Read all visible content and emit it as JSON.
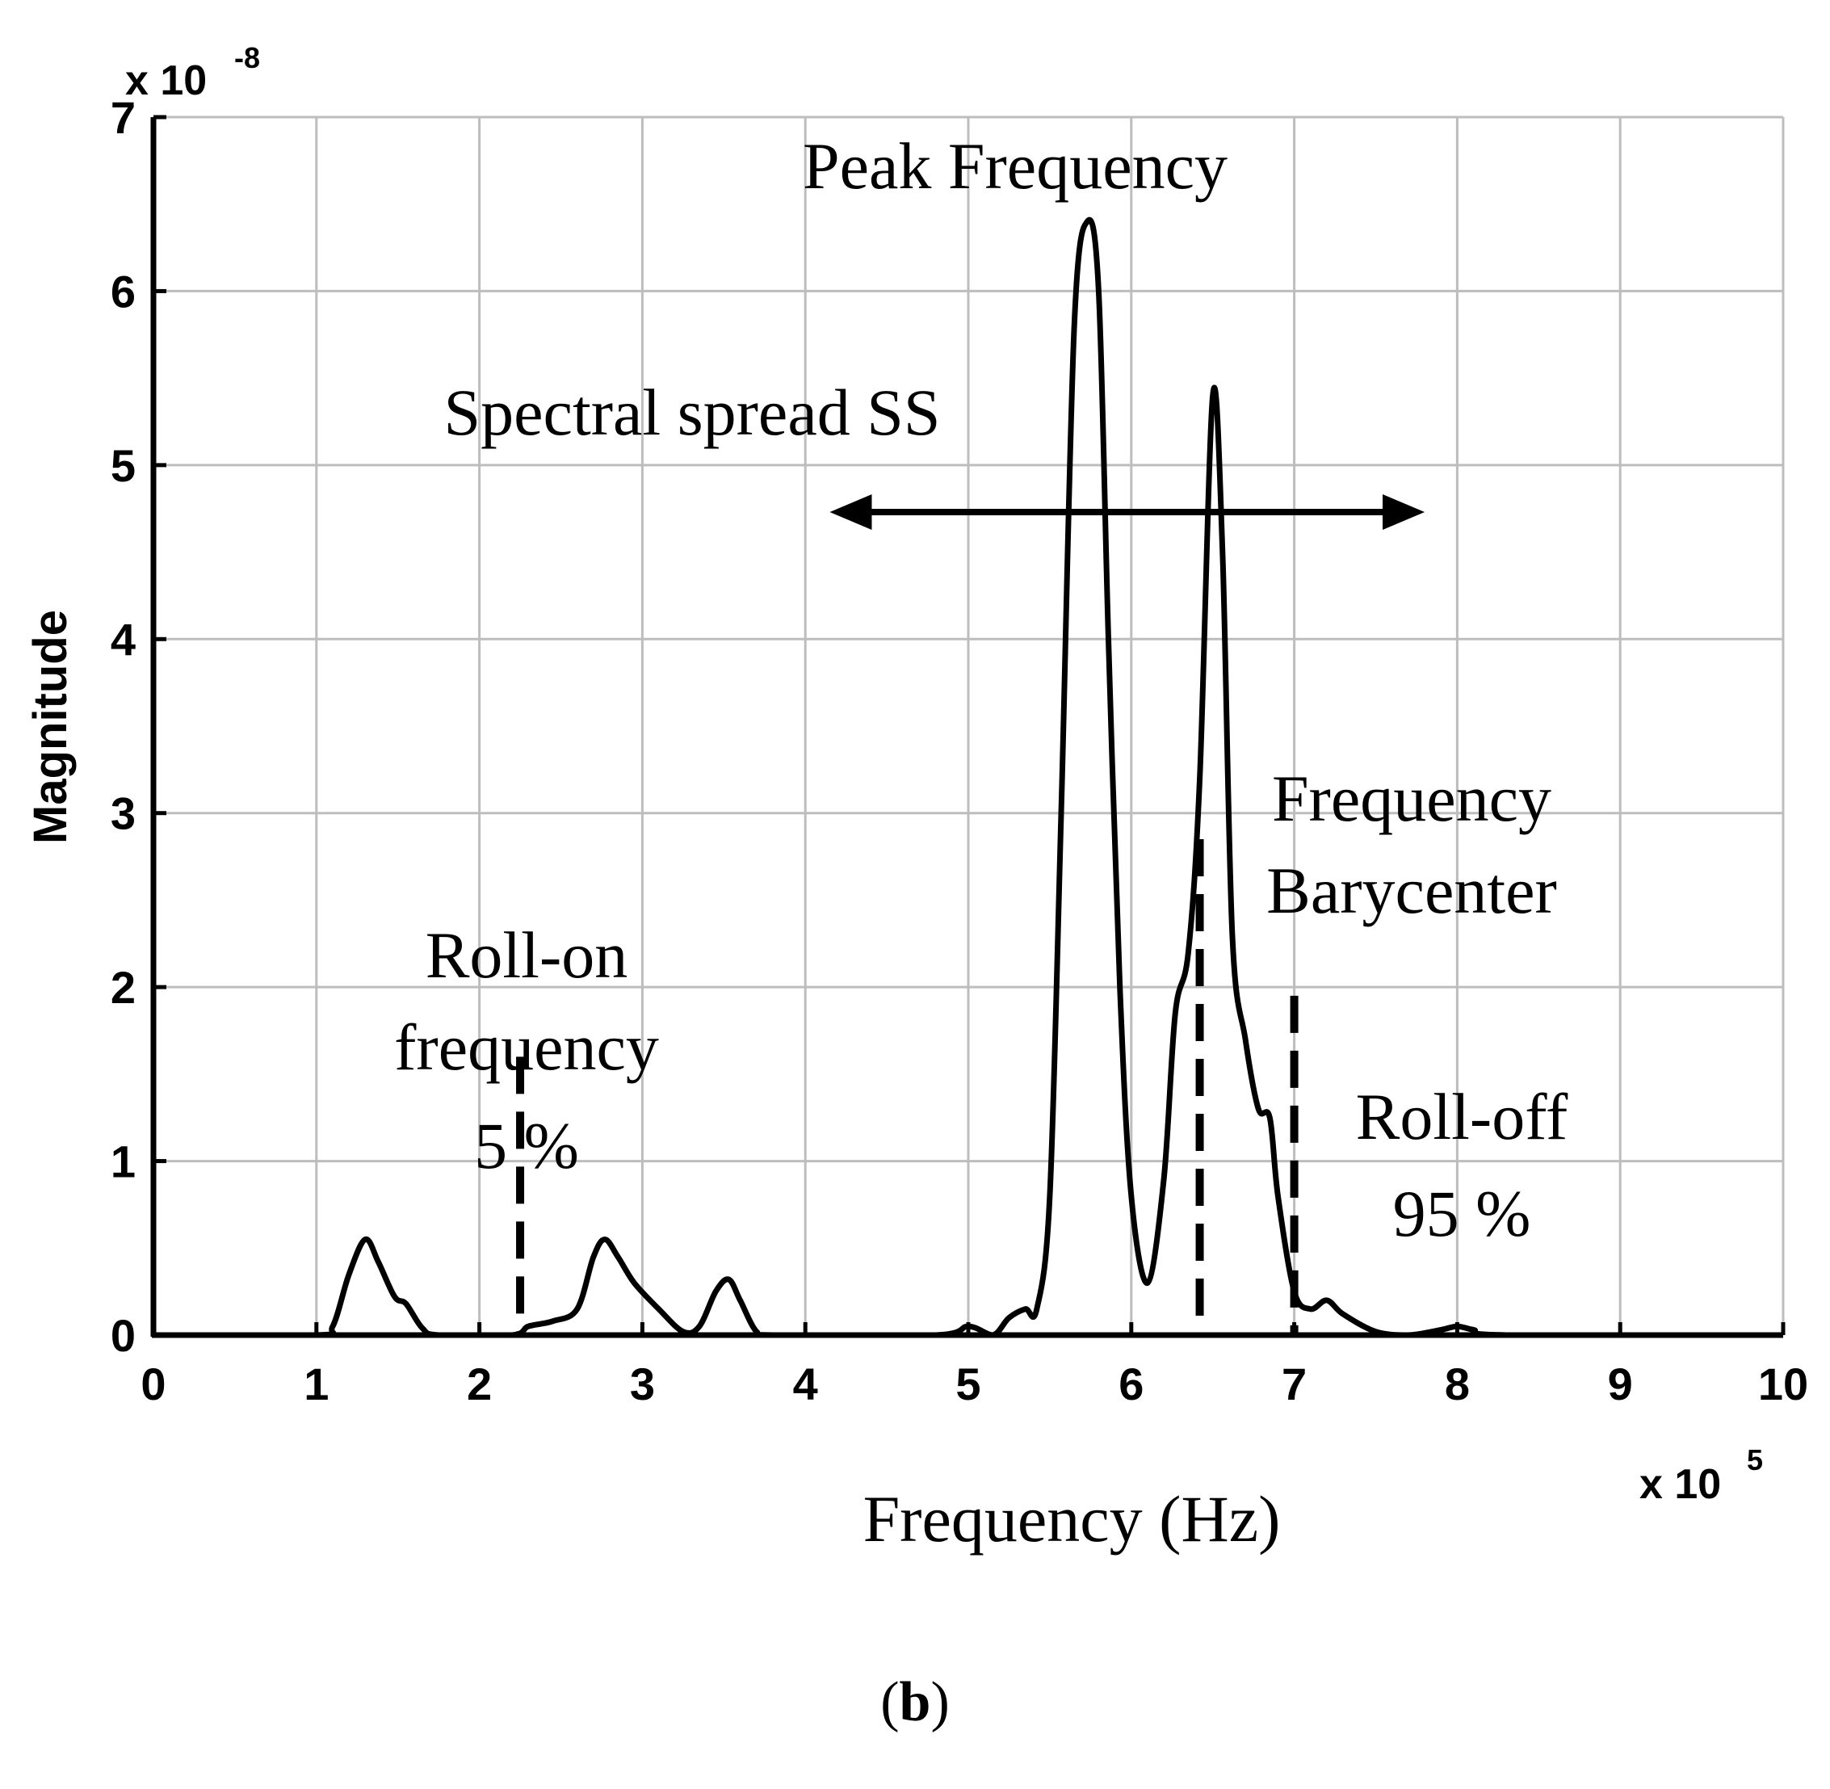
{
  "chart_data": {
    "type": "line",
    "xlabel": "Frequency (Hz)",
    "ylabel": "Magnitude",
    "x_exponent": {
      "base": "x 10",
      "power": "5"
    },
    "y_exponent": {
      "base": "x 10",
      "power": "-8"
    },
    "xlim": [
      0,
      10
    ],
    "ylim": [
      0,
      7
    ],
    "x_ticks": [
      "0",
      "1",
      "2",
      "3",
      "4",
      "5",
      "6",
      "7",
      "8",
      "9",
      "10"
    ],
    "y_ticks": [
      "0",
      "1",
      "2",
      "3",
      "4",
      "5",
      "6",
      "7"
    ],
    "grid": true,
    "series": [
      {
        "color": "#000000",
        "points": [
          [
            0,
            0
          ],
          [
            1.0,
            0
          ],
          [
            1.1,
            0.05
          ],
          [
            1.2,
            0.35
          ],
          [
            1.3,
            0.55
          ],
          [
            1.38,
            0.42
          ],
          [
            1.48,
            0.22
          ],
          [
            1.55,
            0.18
          ],
          [
            1.65,
            0.04
          ],
          [
            1.75,
            0
          ],
          [
            2.2,
            0
          ],
          [
            2.3,
            0.05
          ],
          [
            2.45,
            0.08
          ],
          [
            2.6,
            0.15
          ],
          [
            2.7,
            0.45
          ],
          [
            2.77,
            0.55
          ],
          [
            2.85,
            0.45
          ],
          [
            2.95,
            0.3
          ],
          [
            3.1,
            0.15
          ],
          [
            3.25,
            0.02
          ],
          [
            3.35,
            0.05
          ],
          [
            3.45,
            0.25
          ],
          [
            3.53,
            0.32
          ],
          [
            3.6,
            0.2
          ],
          [
            3.7,
            0.02
          ],
          [
            3.8,
            0
          ],
          [
            4.8,
            0
          ],
          [
            5.0,
            0.05
          ],
          [
            5.15,
            0
          ],
          [
            5.25,
            0.1
          ],
          [
            5.35,
            0.15
          ],
          [
            5.42,
            0.15
          ],
          [
            5.5,
            0.8
          ],
          [
            5.57,
            3.0
          ],
          [
            5.65,
            5.8
          ],
          [
            5.73,
            6.4
          ],
          [
            5.8,
            6.0
          ],
          [
            5.86,
            4.0
          ],
          [
            5.93,
            2.0
          ],
          [
            6.0,
            0.8
          ],
          [
            6.1,
            0.3
          ],
          [
            6.2,
            0.9
          ],
          [
            6.27,
            1.85
          ],
          [
            6.35,
            2.2
          ],
          [
            6.42,
            3.2
          ],
          [
            6.5,
            5.4
          ],
          [
            6.56,
            4.5
          ],
          [
            6.62,
            2.3
          ],
          [
            6.7,
            1.7
          ],
          [
            6.78,
            1.3
          ],
          [
            6.85,
            1.25
          ],
          [
            6.9,
            0.8
          ],
          [
            7.0,
            0.25
          ],
          [
            7.1,
            0.15
          ],
          [
            7.2,
            0.2
          ],
          [
            7.3,
            0.12
          ],
          [
            7.5,
            0.02
          ],
          [
            7.7,
            0
          ],
          [
            7.9,
            0.03
          ],
          [
            8.0,
            0.05
          ],
          [
            8.1,
            0.03
          ],
          [
            8.3,
            0
          ],
          [
            10,
            0
          ]
        ]
      }
    ],
    "markers": [
      {
        "name": "roll-on",
        "x": 2.25,
        "y_top": 1.6
      },
      {
        "name": "barycenter",
        "x": 6.42,
        "y_top": 2.85
      },
      {
        "name": "roll-off",
        "x": 7.0,
        "y_top": 1.95
      }
    ],
    "spread_arrow": {
      "x_start": 4.15,
      "x_end": 7.8,
      "y": 4.73
    },
    "annotations": {
      "peak": "Peak Frequency",
      "spread": "Spectral spread SS",
      "barycenter_line1": "Frequency",
      "barycenter_line2": "Barycenter",
      "rollon_line1": "Roll-on",
      "rollon_line2": "frequency",
      "rollon_line3": "5 %",
      "rolloff_line1": "Roll-off",
      "rolloff_line2": "95 %"
    }
  },
  "caption": {
    "open": "(",
    "letter": "b",
    "close": ")"
  }
}
